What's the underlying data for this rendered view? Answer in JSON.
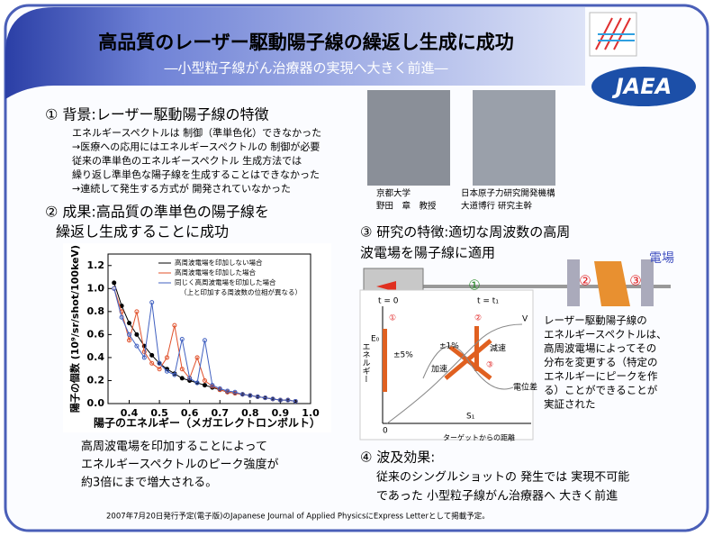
{
  "header": {
    "title": "高品質のレーザー駆動陽子線の繰返し生成に成功",
    "subtitle": "―小型粒子線がん治療器の実現へ大きく前進―",
    "logo": "JAEA"
  },
  "background": {
    "heading": "① 背景:レーザー駆動陽子線の特徴",
    "lines": [
      "エネルギースペクトルは 制御（準単色化）できなかった",
      "→医療への応用にはエネルギースペクトルの 制御が必要",
      "従来の準単色のエネルギースペクトル 生成方法では",
      "繰り返し準単色な陽子線を生成することはできなかった",
      "→連続して発生する方式が 開発されていなかった"
    ]
  },
  "people": [
    {
      "affiliation": "京都大学",
      "name": "野田　章　教授"
    },
    {
      "affiliation": "日本原子力研究開発機構",
      "name": "大道博行 研究主幹"
    }
  ],
  "results": {
    "heading": [
      "② 成果:高品質の準単色の陽子線を",
      "繰返し生成することに成功"
    ],
    "caption": [
      "高周波電場を印加することによって",
      "エネルギースペクトルのピーク強度が",
      "約3倍にまで増大される。"
    ]
  },
  "chart_data": {
    "type": "line",
    "y_label": "陽子の個数 (10⁹/sr/shot/100keV)",
    "x_label": "陽子のエネルギー（メガエレクトロンボルト）",
    "x": [
      0.35,
      0.375,
      0.4,
      0.425,
      0.45,
      0.475,
      0.5,
      0.525,
      0.55,
      0.575,
      0.6,
      0.625,
      0.65,
      0.675,
      0.7,
      0.725,
      0.75,
      0.775,
      0.8,
      0.825,
      0.85,
      0.875,
      0.9,
      0.925,
      0.95
    ],
    "series": [
      {
        "name": "高周波電場を印加しない場合",
        "color": "#000000",
        "values": [
          1.05,
          0.85,
          0.7,
          0.6,
          0.5,
          0.42,
          0.35,
          0.3,
          0.26,
          0.22,
          0.2,
          0.18,
          0.16,
          0.14,
          0.12,
          0.1,
          0.09,
          0.08,
          0.07,
          0.06,
          0.05,
          0.04,
          0.03,
          0.03,
          0.02
        ]
      },
      {
        "name": "高周波電場を印加した場合",
        "color": "#e0502a",
        "values": [
          1.0,
          0.8,
          0.55,
          0.8,
          0.45,
          0.35,
          0.3,
          0.4,
          0.68,
          0.3,
          0.22,
          0.4,
          0.2,
          0.15,
          0.12,
          0.1,
          0.09,
          0.08,
          0.07,
          0.06,
          0.05,
          0.04,
          0.03,
          0.03,
          0.02
        ]
      },
      {
        "name": "同じく高周波電場を印加した場合",
        "color": "#4060c0",
        "values": [
          1.0,
          0.75,
          0.6,
          0.5,
          0.4,
          0.88,
          0.35,
          0.28,
          0.25,
          0.56,
          0.22,
          0.18,
          0.55,
          0.16,
          0.13,
          0.11,
          0.1,
          0.08,
          0.07,
          0.06,
          0.05,
          0.04,
          0.03,
          0.03,
          0.02
        ]
      }
    ],
    "legend_note": "（上と印加する周波数の位相が異なる）",
    "xlim": [
      0.33,
      1.0
    ],
    "ylim": [
      0,
      1.3
    ],
    "xticks": [
      0.4,
      0.5,
      0.6,
      0.7,
      0.8,
      0.9,
      {
        "value": 1.0,
        "label": "1.0"
      }
    ],
    "yticks": [
      {
        "value": 0,
        "label": "0.0"
      },
      0.2,
      0.4,
      0.6,
      0.8,
      {
        "value": 1.0,
        "label": "1.0"
      },
      1.2
    ]
  },
  "research": {
    "heading": [
      "③ 研究の特徴:適切な周波数の高周",
      "波電場を陽子線に適用"
    ],
    "apparatus_labels": [
      "①",
      "②",
      "③",
      "電場"
    ],
    "diagram_labels": [
      "t = 0",
      "t = t₁",
      "①",
      "②",
      "③",
      "V",
      "E₀",
      "±5%",
      "±1%",
      "加速",
      "減速",
      "電位差",
      "0",
      "S₁",
      "ターゲットからの距離"
    ],
    "axis_label": "エネルギー",
    "description": [
      "レーザー駆動陽子線の",
      "エネルギースペクトルは、",
      "高周波電場によってその",
      "分布を変更する（特定の",
      "エネルギーにピークを作",
      "る）ことができることが",
      "実証された"
    ]
  },
  "impact": {
    "heading": "④ 波及効果:",
    "lines": [
      "従来のシングルショットの 発生では 実現不可能",
      "であった 小型粒子線がん治療器へ 大きく前進"
    ]
  },
  "footer": "2007年7月20日発行予定(電子版)のJapanese Journal of Applied PhysicsにExpress Letterとして掲載予定。"
}
